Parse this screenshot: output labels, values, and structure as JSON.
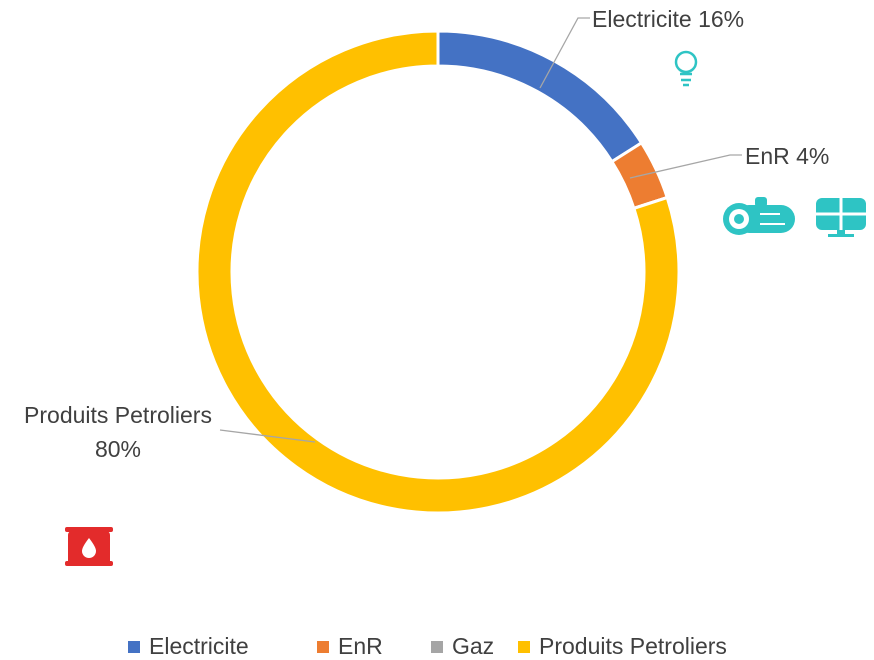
{
  "chart_data": {
    "type": "donut",
    "categories": [
      "Electricite",
      "EnR",
      "Gaz",
      "Produits Petroliers"
    ],
    "values": [
      16,
      4,
      0,
      80
    ],
    "value_labels": [
      "Electricite 16%",
      "EnR 4%",
      null,
      "Produits Petroliers 80%"
    ],
    "colors": [
      "#4472c4",
      "#ed7d31",
      "#a5a5a5",
      "#ffc000"
    ],
    "legend": "bottom"
  }
}
